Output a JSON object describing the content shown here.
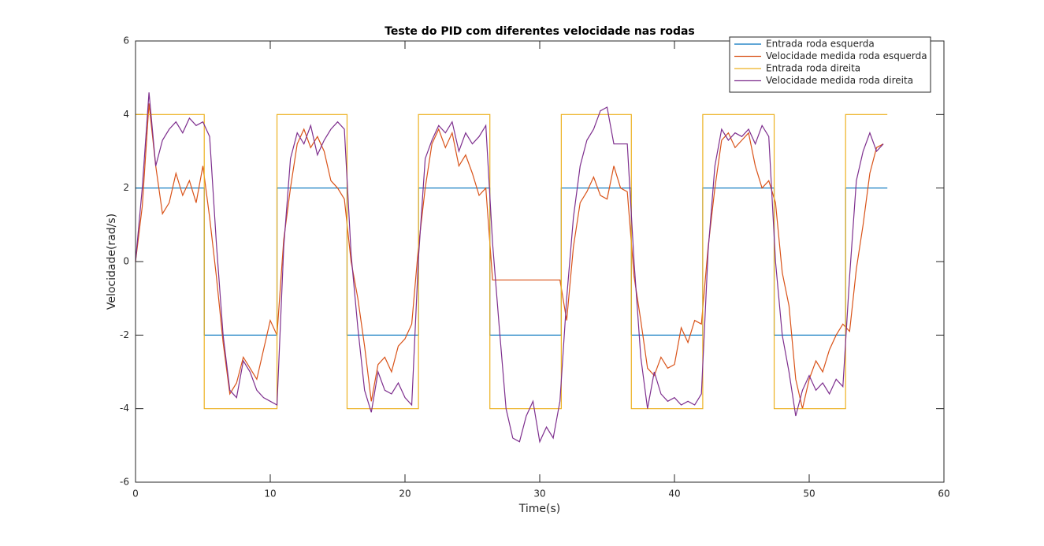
{
  "chart_data": {
    "type": "line",
    "title": "Teste do PID com diferentes velocidade nas rodas",
    "xlabel": "Time(s)",
    "ylabel": "Velocidade(rad/s)",
    "xlim": [
      0,
      60
    ],
    "ylim": [
      -6,
      6
    ],
    "xticks": [
      0,
      10,
      20,
      30,
      40,
      50,
      60
    ],
    "yticks": [
      -6,
      -4,
      -2,
      0,
      2,
      4,
      6
    ],
    "legend": "northeast",
    "series": [
      {
        "name": "Entrada roda esquerda",
        "color": "#0072BD",
        "x": [
          0,
          5.1,
          5.1,
          10.5,
          10.5,
          15.7,
          15.7,
          21,
          21,
          26.3,
          26.3,
          31.6,
          31.6,
          36.8,
          36.8,
          42.1,
          42.1,
          47.4,
          47.4,
          52.7,
          52.7,
          55.8
        ],
        "values": [
          2,
          2,
          -2,
          -2,
          2,
          2,
          -2,
          -2,
          2,
          2,
          -2,
          -2,
          2,
          2,
          -2,
          -2,
          2,
          2,
          -2,
          -2,
          2,
          2
        ]
      },
      {
        "name": "Velocidade medida roda esquerda",
        "color": "#D95319",
        "x": [
          0,
          0.5,
          1,
          1.5,
          2,
          2.5,
          3,
          3.5,
          4,
          4.5,
          5,
          5.5,
          6,
          6.5,
          7,
          7.5,
          8,
          8.5,
          9,
          9.5,
          10,
          10.5,
          11,
          11.5,
          12,
          12.5,
          13,
          13.5,
          14,
          14.5,
          15,
          15.5,
          16,
          16.5,
          17,
          17.5,
          18,
          18.5,
          19,
          19.5,
          20,
          20.5,
          21,
          21.5,
          22,
          22.5,
          23,
          23.5,
          24,
          24.5,
          25,
          25.5,
          26,
          26.5,
          27,
          27.5,
          28,
          28.5,
          29,
          29.5,
          30,
          30.5,
          31,
          31.5,
          32,
          32.5,
          33,
          33.5,
          34,
          34.5,
          35,
          35.5,
          36,
          36.5,
          37,
          37.5,
          38,
          38.5,
          39,
          39.5,
          40,
          40.5,
          41,
          41.5,
          42,
          42.5,
          43,
          43.5,
          44,
          44.5,
          45,
          45.5,
          46,
          46.5,
          47,
          47.5,
          48,
          48.5,
          49,
          49.5,
          50,
          50.5,
          51,
          51.5,
          52,
          52.5,
          53,
          53.5,
          54,
          54.5,
          55,
          55.5
        ],
        "values": [
          0,
          1.5,
          4.3,
          2.6,
          1.3,
          1.6,
          2.4,
          1.8,
          2.2,
          1.6,
          2.6,
          1.2,
          -0.4,
          -2.2,
          -3.6,
          -3.3,
          -2.6,
          -2.9,
          -3.2,
          -2.4,
          -1.6,
          -2.0,
          0.6,
          2.0,
          3.2,
          3.6,
          3.1,
          3.4,
          3.0,
          2.2,
          2.0,
          1.7,
          0.0,
          -1.0,
          -2.3,
          -3.8,
          -2.8,
          -2.6,
          -3.0,
          -2.3,
          -2.1,
          -1.7,
          0.4,
          2.0,
          3.2,
          3.6,
          3.1,
          3.5,
          2.6,
          2.9,
          2.4,
          1.8,
          2.0,
          -0.5,
          -0.5,
          -0.5,
          -0.5,
          -0.5,
          -0.5,
          -0.5,
          -0.5,
          -0.5,
          -0.5,
          -0.5,
          -1.6,
          0.4,
          1.6,
          1.9,
          2.3,
          1.8,
          1.7,
          2.6,
          2.0,
          1.9,
          -0.4,
          -1.6,
          -2.9,
          -3.1,
          -2.6,
          -2.9,
          -2.8,
          -1.8,
          -2.2,
          -1.6,
          -1.7,
          0.4,
          2.0,
          3.3,
          3.5,
          3.1,
          3.3,
          3.5,
          2.6,
          2.0,
          2.2,
          1.6,
          -0.3,
          -1.2,
          -3.2,
          -4.0,
          -3.2,
          -2.7,
          -3.0,
          -2.4,
          -2.0,
          -1.7,
          -1.9,
          -0.2,
          1.0,
          2.4,
          3.1,
          3.2
        ]
      },
      {
        "name": "Entrada roda direita",
        "color": "#EDB120",
        "x": [
          0,
          5.1,
          5.1,
          10.5,
          10.5,
          15.7,
          15.7,
          21,
          21,
          26.3,
          26.3,
          31.6,
          31.6,
          36.8,
          36.8,
          42.1,
          42.1,
          47.4,
          47.4,
          52.7,
          52.7,
          55.8
        ],
        "values": [
          4,
          4,
          -4,
          -4,
          4,
          4,
          -4,
          -4,
          4,
          4,
          -4,
          -4,
          4,
          4,
          -4,
          -4,
          4,
          4,
          -4,
          -4,
          4,
          4
        ]
      },
      {
        "name": "Velocidade medida roda direita",
        "color": "#7E2F8E",
        "x": [
          0,
          0.5,
          1,
          1.5,
          2,
          2.5,
          3,
          3.5,
          4,
          4.5,
          5,
          5.5,
          6,
          6.5,
          7,
          7.5,
          8,
          8.5,
          9,
          9.5,
          10,
          10.5,
          11,
          11.5,
          12,
          12.5,
          13,
          13.5,
          14,
          14.5,
          15,
          15.5,
          16,
          16.5,
          17,
          17.5,
          18,
          18.5,
          19,
          19.5,
          20,
          20.5,
          21,
          21.5,
          22,
          22.5,
          23,
          23.5,
          24,
          24.5,
          25,
          25.5,
          26,
          26.5,
          27,
          27.5,
          28,
          28.5,
          29,
          29.5,
          30,
          30.5,
          31,
          31.5,
          32,
          32.5,
          33,
          33.5,
          34,
          34.5,
          35,
          35.5,
          36,
          36.5,
          37,
          37.5,
          38,
          38.5,
          39,
          39.5,
          40,
          40.5,
          41,
          41.5,
          42,
          42.5,
          43,
          43.5,
          44,
          44.5,
          45,
          45.5,
          46,
          46.5,
          47,
          47.5,
          48,
          48.5,
          49,
          49.5,
          50,
          50.5,
          51,
          51.5,
          52,
          52.5,
          53,
          53.5,
          54,
          54.5,
          55,
          55.5
        ],
        "values": [
          0,
          2.0,
          4.6,
          2.6,
          3.3,
          3.6,
          3.8,
          3.5,
          3.9,
          3.7,
          3.8,
          3.4,
          0.5,
          -2.0,
          -3.5,
          -3.7,
          -2.7,
          -3.0,
          -3.5,
          -3.7,
          -3.8,
          -3.9,
          0.4,
          2.8,
          3.5,
          3.2,
          3.7,
          2.9,
          3.3,
          3.6,
          3.8,
          3.6,
          0.2,
          -1.8,
          -3.5,
          -4.1,
          -3.0,
          -3.5,
          -3.6,
          -3.3,
          -3.7,
          -3.9,
          0.1,
          2.8,
          3.3,
          3.7,
          3.5,
          3.8,
          3.0,
          3.5,
          3.2,
          3.4,
          3.7,
          0.5,
          -1.8,
          -4.0,
          -4.8,
          -4.9,
          -4.2,
          -3.8,
          -4.9,
          -4.5,
          -4.8,
          -3.8,
          -1.0,
          1.2,
          2.6,
          3.3,
          3.6,
          4.1,
          4.2,
          3.2,
          3.2,
          3.2,
          0.0,
          -2.6,
          -4.0,
          -3.0,
          -3.6,
          -3.8,
          -3.7,
          -3.9,
          -3.8,
          -3.9,
          -3.6,
          0.3,
          2.6,
          3.6,
          3.3,
          3.5,
          3.4,
          3.6,
          3.2,
          3.7,
          3.4,
          0.0,
          -2.0,
          -3.0,
          -4.2,
          -3.5,
          -3.1,
          -3.5,
          -3.3,
          -3.6,
          -3.2,
          -3.4,
          -0.4,
          2.2,
          3.0,
          3.5,
          3.0,
          3.2
        ]
      }
    ]
  }
}
